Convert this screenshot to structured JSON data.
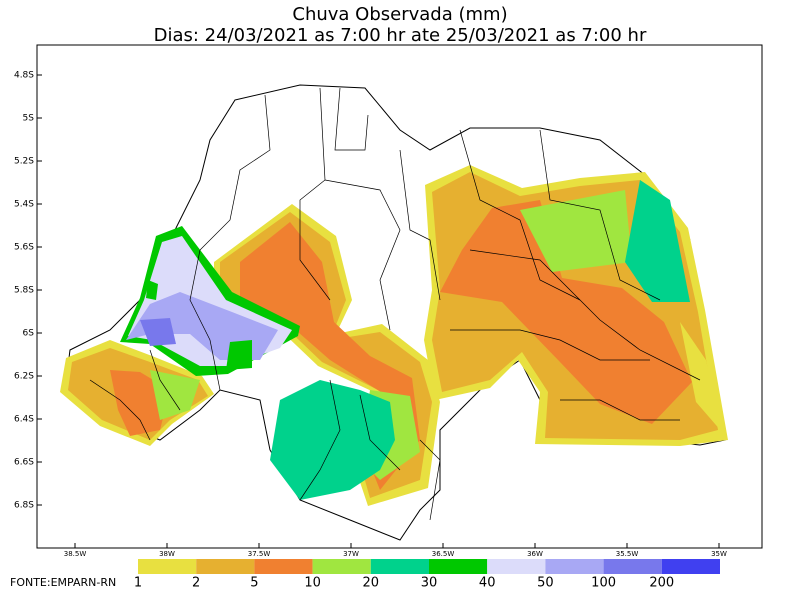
{
  "map": {
    "title": "Chuva Observada (mm)",
    "subtitle": "Dias: 24/03/2021 as 7:00 hr ate 25/03/2021 as 7:00 hr",
    "lat_labels": [
      "4.8S",
      "5S",
      "5.2S",
      "5.4S",
      "5.6S",
      "5.8S",
      "6S",
      "6.2S",
      "6.4S",
      "6.6S",
      "6.8S"
    ],
    "lon_labels": [
      "38.5W",
      "38W",
      "37.5W",
      "37W",
      "36.5W",
      "36W",
      "35.5W",
      "35W"
    ],
    "legend": [
      {
        "label": "1",
        "color": "#e8e040"
      },
      {
        "label": "2",
        "color": "#e6b030"
      },
      {
        "label": "5",
        "color": "#f08030"
      },
      {
        "label": "10",
        "color": "#a0e640"
      },
      {
        "label": "20",
        "color": "#00d28c"
      },
      {
        "label": "30",
        "color": "#00c800"
      },
      {
        "label": "40",
        "color": "#dcdcfa"
      },
      {
        "label": "50",
        "color": "#a8a8f4"
      },
      {
        "label": "100",
        "color": "#7878ec"
      },
      {
        "label": "200",
        "color": "#4040f0"
      }
    ],
    "source": "FONTE:EMPARN-RN"
  }
}
